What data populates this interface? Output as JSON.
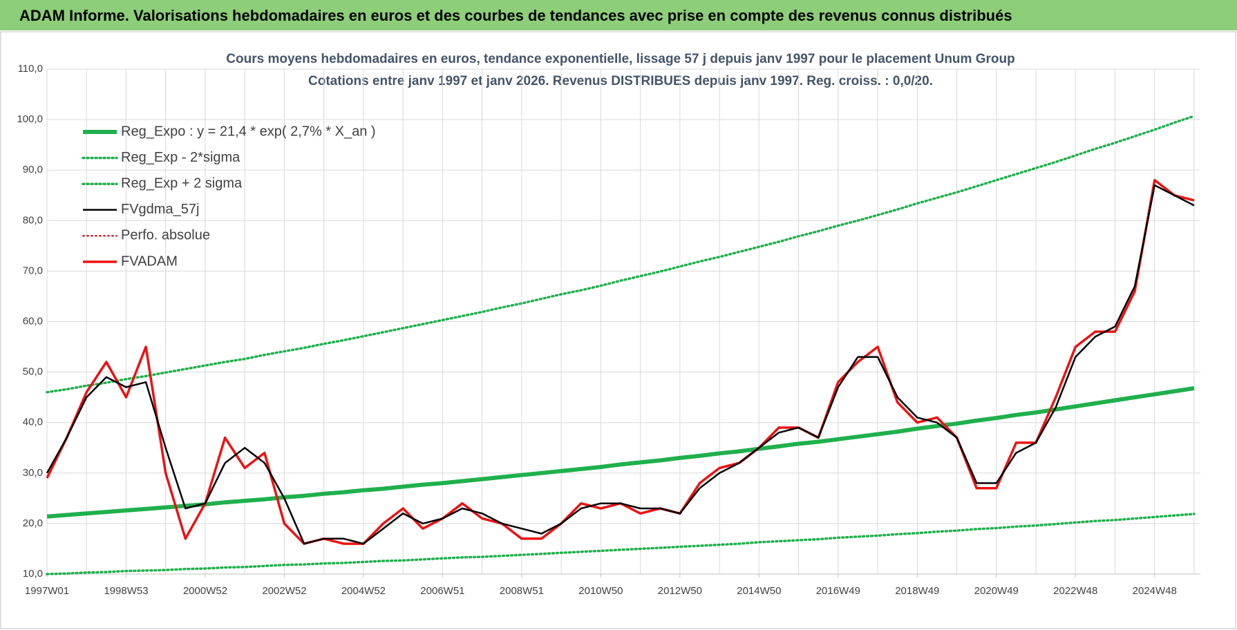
{
  "header": {
    "title": "ADAM Informe. Valorisations hebdomadaires en euros et des courbes de tendances avec prise en compte des revenus connus distribués"
  },
  "chart_data": {
    "type": "line",
    "title": "Cours moyens hebdomadaires en euros, tendance exponentielle, lissage 57 j depuis janv 1997 pour le placement Unum Group",
    "subtitle": "Cotations entre janv 1997 et janv 2026. Revenus DISTRIBUES depuis janv 1997. Reg. croiss. : 0,0/20.",
    "categories": [
      "1997W01",
      null,
      null,
      null,
      "1998W53",
      null,
      null,
      null,
      "2000W52",
      null,
      null,
      null,
      "2002W52",
      null,
      null,
      null,
      "2004W52",
      null,
      null,
      null,
      "2006W51",
      null,
      null,
      null,
      "2008W51",
      null,
      null,
      null,
      "2010W50",
      null,
      null,
      null,
      "2012W50",
      null,
      null,
      null,
      "2014W50",
      null,
      null,
      null,
      "2016W49",
      null,
      null,
      null,
      "2018W49",
      null,
      null,
      null,
      "2020W49",
      null,
      null,
      null,
      "2022W48",
      null,
      null,
      null,
      "2024W48",
      null,
      null
    ],
    "ylim": [
      10,
      110
    ],
    "yticks": [
      {
        "value": 10,
        "label": "10,0"
      },
      {
        "value": 20,
        "label": "20,0"
      },
      {
        "value": 30,
        "label": "30,0"
      },
      {
        "value": 40,
        "label": "40,0"
      },
      {
        "value": 50,
        "label": "50,0"
      },
      {
        "value": 60,
        "label": "60,0"
      },
      {
        "value": 70,
        "label": "70,0"
      },
      {
        "value": 80,
        "label": "80,0"
      },
      {
        "value": 90,
        "label": "90,0"
      },
      {
        "value": 100,
        "label": "100,0"
      },
      {
        "value": 110,
        "label": "110,0"
      }
    ],
    "grid": true,
    "legend": "top-left",
    "series": [
      {
        "name": "Reg_Expo : y = 21,4 * exp( 2,7% *  X_an )",
        "color": "#1fb04c",
        "style": "solid",
        "values": [
          21.4,
          21.7,
          22.0,
          22.3,
          22.6,
          22.9,
          23.2,
          23.5,
          23.8,
          24.2,
          24.5,
          24.8,
          25.2,
          25.5,
          25.9,
          26.2,
          26.6,
          26.9,
          27.3,
          27.7,
          28.0,
          28.4,
          28.8,
          29.2,
          29.6,
          30.0,
          30.4,
          30.8,
          31.2,
          31.7,
          32.1,
          32.5,
          33.0,
          33.4,
          33.9,
          34.3,
          34.8,
          35.3,
          35.8,
          36.2,
          36.7,
          37.2,
          37.7,
          38.2,
          38.8,
          39.3,
          39.8,
          40.4,
          40.9,
          41.5,
          42.0,
          42.6,
          43.2,
          43.8,
          44.4,
          45.0,
          45.6,
          46.2,
          46.8
        ]
      },
      {
        "name": "Reg_Exp - 2*sigma",
        "color": "#1fb04c",
        "style": "dotted",
        "values": [
          10.0,
          10.1,
          10.3,
          10.4,
          10.6,
          10.7,
          10.8,
          11.0,
          11.1,
          11.3,
          11.4,
          11.6,
          11.8,
          11.9,
          12.1,
          12.2,
          12.4,
          12.6,
          12.7,
          12.9,
          13.1,
          13.3,
          13.4,
          13.6,
          13.8,
          14.0,
          14.2,
          14.4,
          14.6,
          14.8,
          15.0,
          15.2,
          15.4,
          15.6,
          15.8,
          16.0,
          16.3,
          16.5,
          16.7,
          16.9,
          17.2,
          17.4,
          17.6,
          17.9,
          18.1,
          18.4,
          18.6,
          18.9,
          19.1,
          19.4,
          19.6,
          19.9,
          20.2,
          20.5,
          20.7,
          21.0,
          21.3,
          21.6,
          21.9
        ]
      },
      {
        "name": "Reg_Exp + 2 sigma",
        "color": "#1fb04c",
        "style": "dotted",
        "values": [
          46.0,
          46.6,
          47.3,
          47.9,
          48.6,
          49.2,
          49.9,
          50.6,
          51.3,
          52.0,
          52.6,
          53.4,
          54.1,
          54.8,
          55.6,
          56.3,
          57.1,
          57.9,
          58.7,
          59.5,
          60.3,
          61.1,
          61.9,
          62.8,
          63.6,
          64.5,
          65.4,
          66.2,
          67.1,
          68.1,
          69.0,
          69.9,
          70.9,
          71.9,
          72.8,
          73.8,
          74.8,
          75.8,
          76.9,
          77.9,
          79.0,
          80.0,
          81.1,
          82.2,
          83.4,
          84.5,
          85.6,
          86.8,
          88.0,
          89.2,
          90.4,
          91.6,
          92.9,
          94.2,
          95.4,
          96.7,
          98.0,
          99.4,
          100.7
        ]
      },
      {
        "name": "FVgdma_57j",
        "color": "#000000",
        "style": "solid",
        "values": [
          30,
          37,
          45,
          49,
          47,
          48,
          35,
          23,
          24,
          32,
          35,
          32,
          25,
          16,
          17,
          17,
          16,
          19,
          22,
          20,
          21,
          23,
          22,
          20,
          19,
          18,
          20,
          23,
          24,
          24,
          23,
          23,
          22,
          27,
          30,
          32,
          35,
          38,
          39,
          37,
          47,
          53,
          53,
          45,
          41,
          40,
          37,
          28,
          28,
          34,
          36,
          43,
          53,
          57,
          59,
          67,
          87,
          85,
          83
        ]
      },
      {
        "name": "Perfo. absolue",
        "color": "#c00000",
        "style": "dotted",
        "values": [
          null,
          null,
          null,
          null,
          null,
          null,
          null,
          null,
          null,
          null,
          null,
          null,
          null,
          null,
          null,
          null,
          null,
          null,
          null,
          null,
          null,
          null,
          null,
          null,
          null,
          null,
          null,
          null,
          null,
          null,
          null,
          null,
          null,
          null,
          null,
          null,
          null,
          null,
          null,
          null,
          null,
          null,
          null,
          null,
          null,
          null,
          null,
          null,
          null,
          null,
          null,
          null,
          null,
          null,
          null,
          null,
          null,
          null,
          null
        ]
      },
      {
        "name": "FVADAM",
        "color": "#ee1111",
        "style": "solid",
        "values": [
          29,
          37,
          46,
          52,
          45,
          55,
          30,
          17,
          24,
          37,
          31,
          34,
          20,
          16,
          17,
          16,
          16,
          20,
          23,
          19,
          21,
          24,
          21,
          20,
          17,
          17,
          20,
          24,
          23,
          24,
          22,
          23,
          22,
          28,
          31,
          32,
          35,
          39,
          39,
          37,
          48,
          52,
          55,
          44,
          40,
          41,
          37,
          27,
          27,
          36,
          36,
          45,
          55,
          58,
          58,
          66,
          88,
          85,
          84
        ]
      }
    ]
  }
}
